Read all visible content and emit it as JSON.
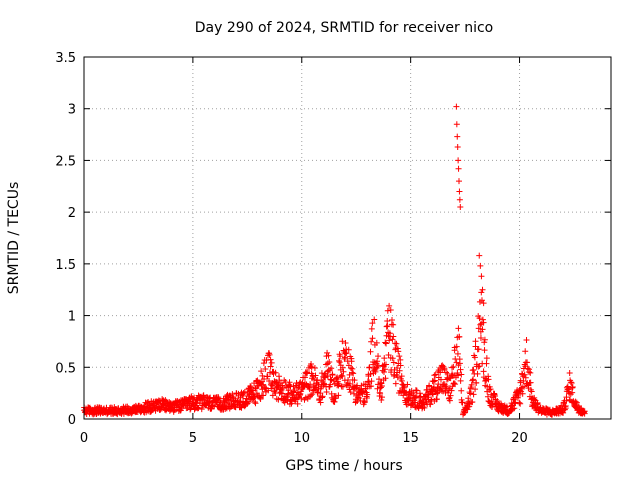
{
  "chart_data": {
    "type": "scatter",
    "title": "Day 290 of 2024, SRMTID for receiver nico",
    "xlabel": "GPS time / hours",
    "ylabel": "SRMTID / TECUs",
    "xlim": [
      0,
      24.2
    ],
    "ylim": [
      0,
      3.5
    ],
    "grid": true,
    "marker": "+",
    "color": "#ff0000",
    "x_ticks": [
      {
        "value": 0,
        "label": "0"
      },
      {
        "value": 5,
        "label": "5"
      },
      {
        "value": 10,
        "label": "10"
      },
      {
        "value": 15,
        "label": "15"
      },
      {
        "value": 20,
        "label": "20"
      }
    ],
    "y_ticks": [
      {
        "value": 0,
        "label": "0"
      },
      {
        "value": 0.5,
        "label": "0.5"
      },
      {
        "value": 1,
        "label": "1"
      },
      {
        "value": 1.5,
        "label": "1.5"
      },
      {
        "value": 2,
        "label": "2"
      },
      {
        "value": 2.5,
        "label": "2.5"
      },
      {
        "value": 3,
        "label": "3"
      },
      {
        "value": 3.5,
        "label": "3.5"
      }
    ],
    "envelope": [
      [
        0.0,
        0.1
      ],
      [
        0.5,
        0.1
      ],
      [
        1.0,
        0.1
      ],
      [
        1.5,
        0.1
      ],
      [
        2.0,
        0.11
      ],
      [
        2.5,
        0.12
      ],
      [
        3.0,
        0.15
      ],
      [
        3.5,
        0.17
      ],
      [
        4.0,
        0.15
      ],
      [
        4.5,
        0.16
      ],
      [
        5.0,
        0.2
      ],
      [
        5.5,
        0.2
      ],
      [
        6.0,
        0.18
      ],
      [
        6.5,
        0.2
      ],
      [
        7.0,
        0.22
      ],
      [
        7.5,
        0.26
      ],
      [
        8.0,
        0.35
      ],
      [
        8.4,
        0.6
      ],
      [
        8.8,
        0.4
      ],
      [
        9.2,
        0.35
      ],
      [
        9.6,
        0.28
      ],
      [
        10.0,
        0.35
      ],
      [
        10.5,
        0.5
      ],
      [
        10.8,
        0.3
      ],
      [
        11.2,
        0.6
      ],
      [
        11.5,
        0.3
      ],
      [
        11.8,
        0.65
      ],
      [
        12.1,
        0.7
      ],
      [
        12.5,
        0.3
      ],
      [
        13.0,
        0.3
      ],
      [
        13.3,
        1.0
      ],
      [
        13.6,
        0.3
      ],
      [
        14.0,
        1.0
      ],
      [
        14.4,
        0.6
      ],
      [
        14.8,
        0.3
      ],
      [
        15.2,
        0.25
      ],
      [
        15.6,
        0.2
      ],
      [
        16.0,
        0.35
      ],
      [
        16.4,
        0.5
      ],
      [
        16.8,
        0.35
      ],
      [
        17.0,
        0.6
      ],
      [
        17.2,
        0.8
      ],
      [
        17.4,
        0.05
      ],
      [
        17.8,
        0.3
      ],
      [
        18.2,
        1.2
      ],
      [
        18.6,
        0.3
      ],
      [
        19.0,
        0.15
      ],
      [
        19.5,
        0.1
      ],
      [
        20.0,
        0.3
      ],
      [
        20.3,
        0.72
      ],
      [
        20.6,
        0.2
      ],
      [
        21.0,
        0.1
      ],
      [
        21.5,
        0.08
      ],
      [
        22.0,
        0.12
      ],
      [
        22.3,
        0.4
      ],
      [
        22.6,
        0.15
      ],
      [
        23.0,
        0.08
      ]
    ],
    "spike_points": [
      [
        17.1,
        3.02
      ],
      [
        17.12,
        2.85
      ],
      [
        17.14,
        2.73
      ],
      [
        17.16,
        2.63
      ],
      [
        17.18,
        2.5
      ],
      [
        17.2,
        2.42
      ],
      [
        17.22,
        2.3
      ],
      [
        17.24,
        2.2
      ],
      [
        17.26,
        2.12
      ],
      [
        17.28,
        2.05
      ],
      [
        18.15,
        1.58
      ],
      [
        18.2,
        1.48
      ],
      [
        18.25,
        1.38
      ],
      [
        18.3,
        1.25
      ],
      [
        18.35,
        1.12
      ]
    ]
  }
}
